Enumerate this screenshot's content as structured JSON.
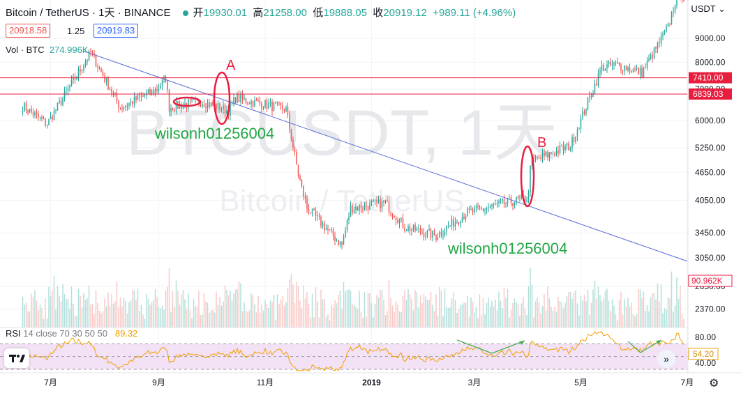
{
  "header": {
    "symbol": "Bitcoin / TetherUS · 1天 · BINANCE",
    "open_label": "开",
    "open": "19930.01",
    "high_label": "高",
    "high": "21258.00",
    "low_label": "低",
    "low": "19888.05",
    "close_label": "收",
    "close": "20919.12",
    "change": "+989.11 (+4.96%)",
    "bid": "20918.58",
    "spread": "1.25",
    "ask": "20919.83",
    "currency": "USDT"
  },
  "volume_legend": {
    "label": "Vol · BTC",
    "value": "274.996K"
  },
  "rsi_legend": {
    "label": "RSI",
    "params": "14 close 70 30 50 50",
    "value": "89.32"
  },
  "watermark": {
    "main": "BTCUSDT, 1天",
    "sub": "Bitcoin / TetherUS"
  },
  "annotations": {
    "a": "A",
    "b": "B",
    "author": "wilsonh01256004"
  },
  "colors": {
    "up": "#26a69a",
    "down": "#ef5350",
    "trendline": "#5b6cd8",
    "resistance": "#e91e3f",
    "rsi_line": "#f0a000",
    "rsi_band": "#f3e1f6",
    "arrow": "#4caf50"
  },
  "chart_data": {
    "type": "candlestick",
    "price_axis": {
      "scale": "log",
      "ticks": [
        "9000.00",
        "8000.00",
        "7000.00",
        "6000.00",
        "5250.00",
        "4650.00",
        "4050.00",
        "3450.00",
        "3050.00",
        "2650.00",
        "2370.00"
      ],
      "range": [
        2300,
        11500
      ]
    },
    "time_axis": {
      "ticks": [
        "7月",
        "9月",
        "11月",
        "2019",
        "3月",
        "5月",
        "7月"
      ]
    },
    "horizontal_levels": [
      {
        "label": "7410.00",
        "value": 7410
      },
      {
        "label": "6839.03",
        "value": 6839.03
      }
    ],
    "trendline": {
      "from": {
        "date": "2018-07-24",
        "price": 8450
      },
      "to": {
        "date": "2019-06-30",
        "price": 3000
      }
    },
    "close_path": [
      [
        "2018-06-15",
        6450
      ],
      [
        "2018-06-29",
        5900
      ],
      [
        "2018-07-24",
        8400
      ],
      [
        "2018-08-10",
        6400
      ],
      [
        "2018-08-31",
        7000
      ],
      [
        "2018-09-05",
        7400
      ],
      [
        "2018-09-07",
        6400
      ],
      [
        "2018-09-25",
        6600
      ],
      [
        "2018-10-11",
        6300
      ],
      [
        "2018-10-15",
        6700
      ],
      [
        "2018-11-13",
        6350
      ],
      [
        "2018-11-20",
        4600
      ],
      [
        "2018-11-25",
        3900
      ],
      [
        "2018-12-15",
        3250
      ],
      [
        "2018-12-20",
        3900
      ],
      [
        "2019-01-09",
        4000
      ],
      [
        "2019-01-20",
        3550
      ],
      [
        "2019-02-07",
        3400
      ],
      [
        "2019-02-24",
        3800
      ],
      [
        "2019-03-31",
        4100
      ],
      [
        "2019-04-01",
        4150
      ],
      [
        "2019-04-02",
        4900
      ],
      [
        "2019-04-25",
        5300
      ],
      [
        "2019-05-13",
        7800
      ],
      [
        "2019-05-22",
        7900
      ],
      [
        "2019-06-05",
        7600
      ],
      [
        "2019-06-20",
        9500
      ],
      [
        "2019-06-26",
        11500
      ],
      [
        "2019-06-30",
        10800
      ]
    ],
    "indicators": {
      "volume_current": "90.962K",
      "rsi": {
        "current": "54.20",
        "ticks": [
          "80.00",
          "40.00"
        ],
        "band": [
          30,
          70
        ],
        "range": [
          30,
          90
        ]
      }
    }
  }
}
